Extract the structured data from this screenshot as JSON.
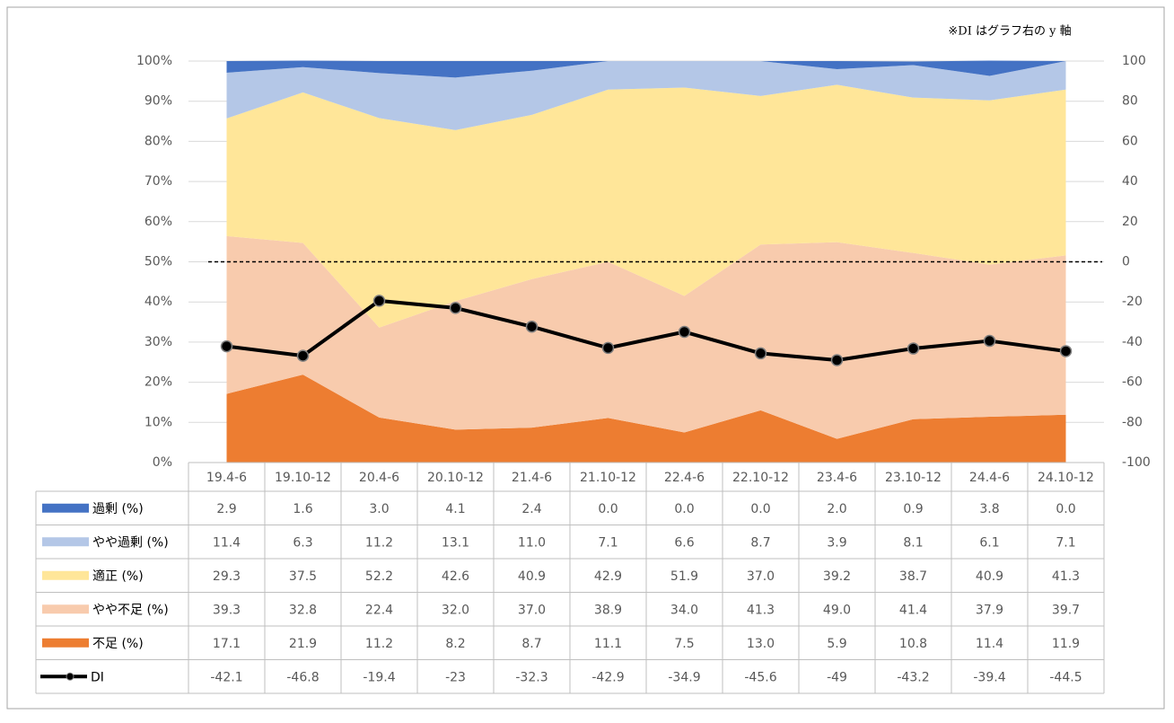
{
  "chart_data": {
    "type": "area",
    "annotation": "※DI はグラフ右の y 軸",
    "categories": [
      "19.4-6",
      "19.10-12",
      "20.4-6",
      "20.10-12",
      "21.4-6",
      "21.10-12",
      "22.4-6",
      "22.10-12",
      "23.4-6",
      "23.10-12",
      "24.4-6",
      "24.10-12"
    ],
    "series": [
      {
        "name": "過剰 (%)",
        "type": "area",
        "color": "#4472c4",
        "values": [
          2.9,
          1.6,
          3.0,
          4.1,
          2.4,
          0.0,
          0.0,
          0.0,
          2.0,
          0.9,
          3.8,
          0.0
        ],
        "value_labels": [
          "2.9",
          "1.6",
          "3.0",
          "4.1",
          "2.4",
          "0.0",
          "0.0",
          "0.0",
          "2.0",
          "0.9",
          "3.8",
          "0.0"
        ]
      },
      {
        "name": "やや過剰 (%)",
        "type": "area",
        "color": "#b4c7e7",
        "values": [
          11.4,
          6.3,
          11.2,
          13.1,
          11.0,
          7.1,
          6.6,
          8.7,
          3.9,
          8.1,
          6.1,
          7.1
        ],
        "value_labels": [
          "11.4",
          "6.3",
          "11.2",
          "13.1",
          "11.0",
          "7.1",
          "6.6",
          "8.7",
          "3.9",
          "8.1",
          "6.1",
          "7.1"
        ]
      },
      {
        "name": "適正 (%)",
        "type": "area",
        "color": "#ffe699",
        "values": [
          29.3,
          37.5,
          52.2,
          42.6,
          40.9,
          42.9,
          51.9,
          37.0,
          39.2,
          38.7,
          40.9,
          41.3
        ],
        "value_labels": [
          "29.3",
          "37.5",
          "52.2",
          "42.6",
          "40.9",
          "42.9",
          "51.9",
          "37.0",
          "39.2",
          "38.7",
          "40.9",
          "41.3"
        ]
      },
      {
        "name": "やや不足 (%)",
        "type": "area",
        "color": "#f8cbad",
        "values": [
          39.3,
          32.8,
          22.4,
          32.0,
          37.0,
          38.9,
          34.0,
          41.3,
          49.0,
          41.4,
          37.9,
          39.7
        ],
        "value_labels": [
          "39.3",
          "32.8",
          "22.4",
          "32.0",
          "37.0",
          "38.9",
          "34.0",
          "41.3",
          "49.0",
          "41.4",
          "37.9",
          "39.7"
        ]
      },
      {
        "name": "不足 (%)",
        "type": "area",
        "color": "#ed7d31",
        "values": [
          17.1,
          21.9,
          11.2,
          8.2,
          8.7,
          11.1,
          7.5,
          13.0,
          5.9,
          10.8,
          11.4,
          11.9
        ],
        "value_labels": [
          "17.1",
          "21.9",
          "11.2",
          "8.2",
          "8.7",
          "11.1",
          "7.5",
          "13.0",
          "5.9",
          "10.8",
          "11.4",
          "11.9"
        ]
      },
      {
        "name": "DI",
        "type": "line",
        "axis": "y2",
        "color": "#000000",
        "values": [
          -42.1,
          -46.8,
          -19.4,
          -23.0,
          -32.3,
          -42.9,
          -34.9,
          -45.6,
          -49.0,
          -43.2,
          -39.4,
          -44.5
        ]
      }
    ],
    "ylim": [
      0,
      100
    ],
    "yticks": [
      {
        "value": 0,
        "label": "0%"
      },
      {
        "value": 10,
        "label": "10%"
      },
      {
        "value": 20,
        "label": "20%"
      },
      {
        "value": 30,
        "label": "30%"
      },
      {
        "value": 40,
        "label": "40%"
      },
      {
        "value": 50,
        "label": "50%"
      },
      {
        "value": 60,
        "label": "60%"
      },
      {
        "value": 70,
        "label": "70%"
      },
      {
        "value": 80,
        "label": "80%"
      },
      {
        "value": 90,
        "label": "90%"
      },
      {
        "value": 100,
        "label": "100%"
      }
    ],
    "y2lim": [
      -100,
      100
    ],
    "y2ticks": [
      -100,
      -80,
      -60,
      -40,
      -20,
      0,
      20,
      40,
      60,
      80,
      100
    ],
    "grid": true
  }
}
